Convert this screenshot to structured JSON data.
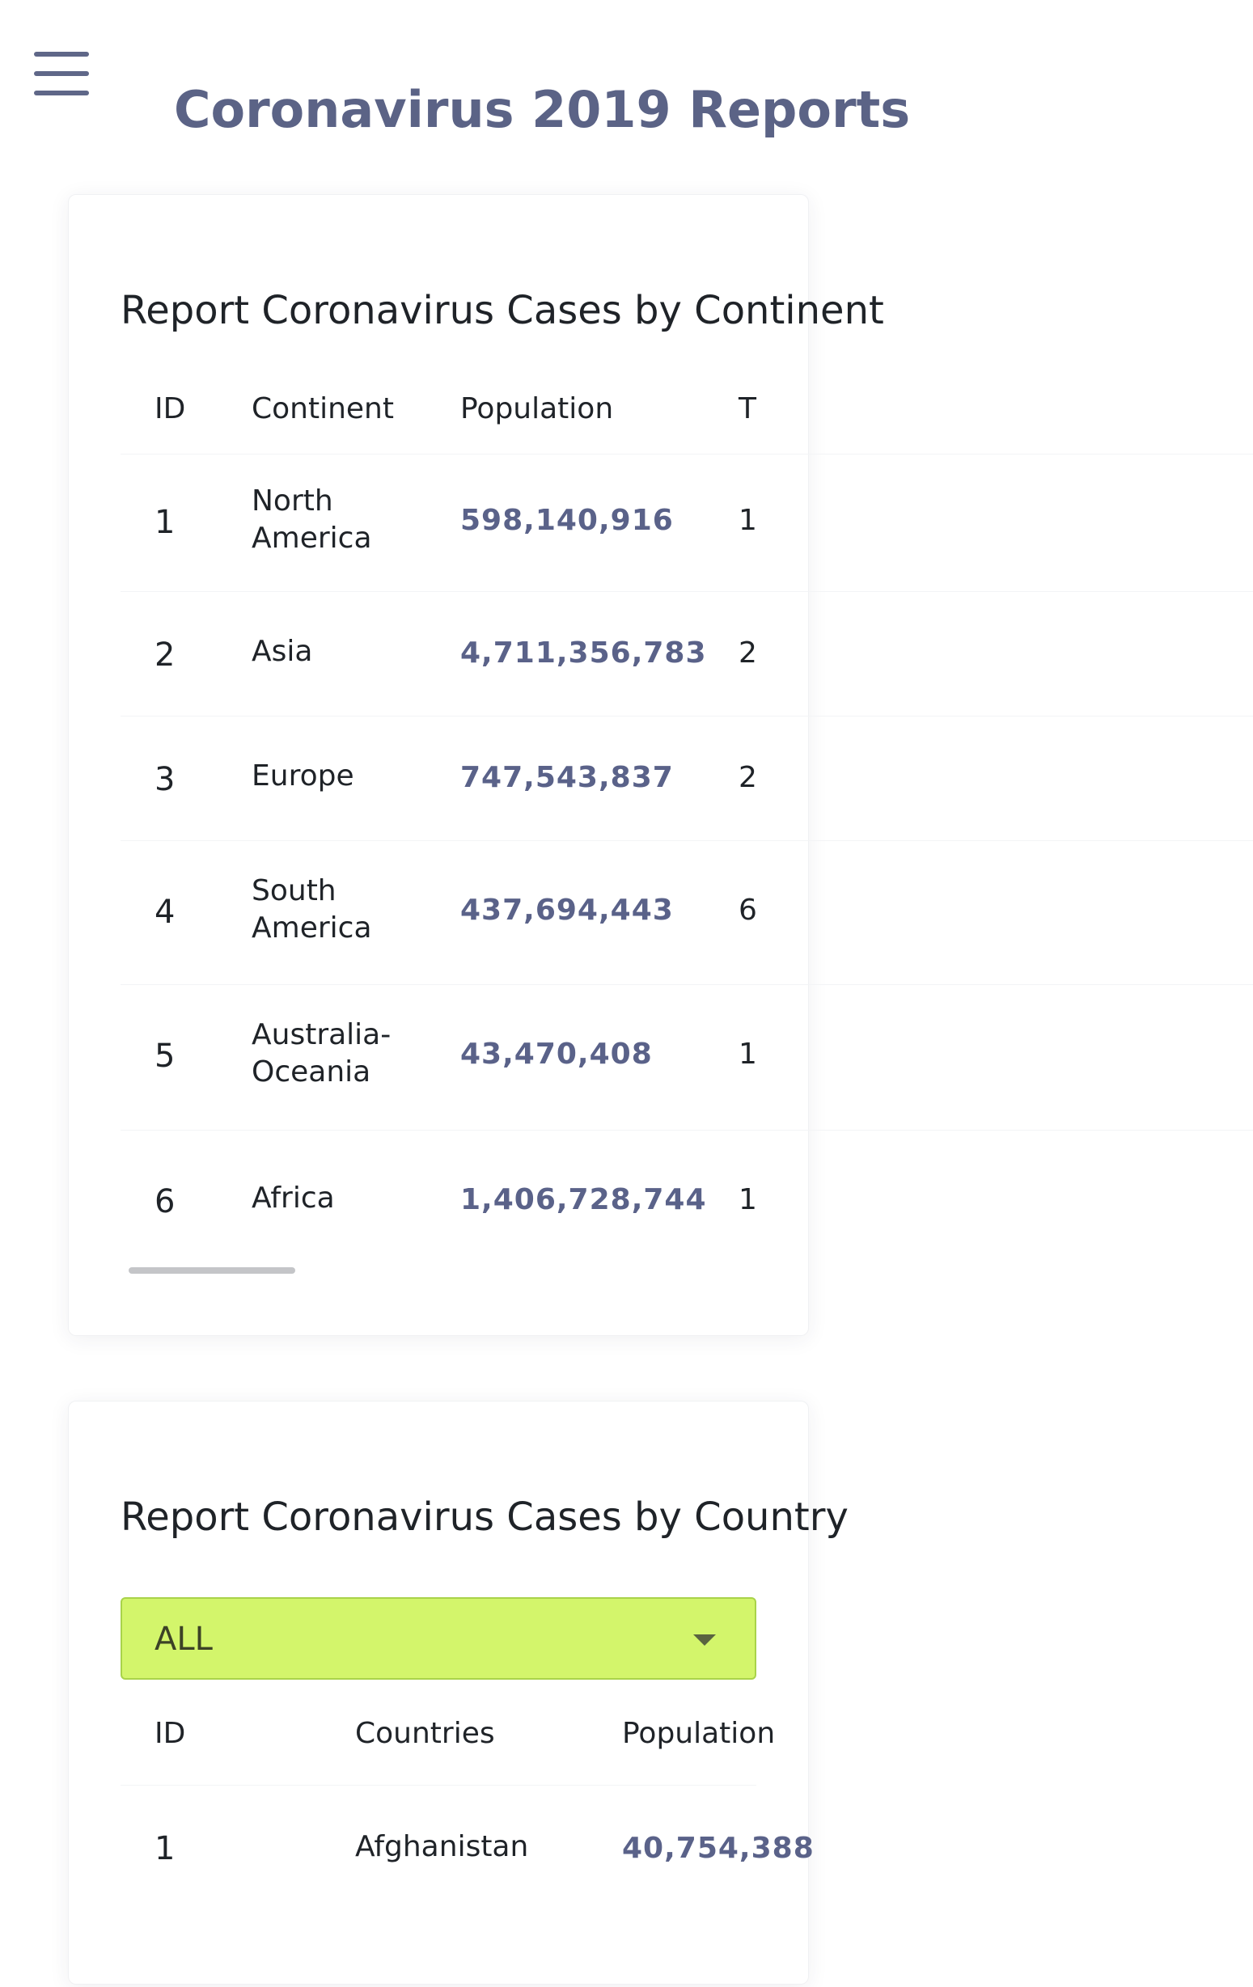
{
  "header": {
    "menu_icon": "hamburger-menu-icon",
    "title": "Coronavirus 2019 Reports"
  },
  "continent_report": {
    "title": "Report Coronavirus Cases by Continent",
    "columns": [
      "ID",
      "Continent",
      "Population",
      "T"
    ],
    "rows": [
      {
        "id": "1",
        "continent": "North America",
        "population": "598,140,916",
        "next": "1"
      },
      {
        "id": "2",
        "continent": "Asia",
        "population": "4,711,356,783",
        "next": "2"
      },
      {
        "id": "3",
        "continent": "Europe",
        "population": "747,543,837",
        "next": "2"
      },
      {
        "id": "4",
        "continent": "South America",
        "population": "437,694,443",
        "next": "6"
      },
      {
        "id": "5",
        "continent": "Australia-Oceania",
        "population": "43,470,408",
        "next": "1"
      },
      {
        "id": "6",
        "continent": "Africa",
        "population": "1,406,728,744",
        "next": "1"
      }
    ]
  },
  "country_report": {
    "title": "Report Coronavirus Cases by Country",
    "filter": {
      "selected": "ALL"
    },
    "columns": [
      "ID",
      "Countries",
      "Population"
    ],
    "rows": [
      {
        "id": "1",
        "country": "Afghanistan",
        "population": "40,754,388"
      }
    ]
  },
  "colors": {
    "title": "#5b6386",
    "numbers": "#5a6289",
    "dropdown_bg": "#d3f56b"
  }
}
